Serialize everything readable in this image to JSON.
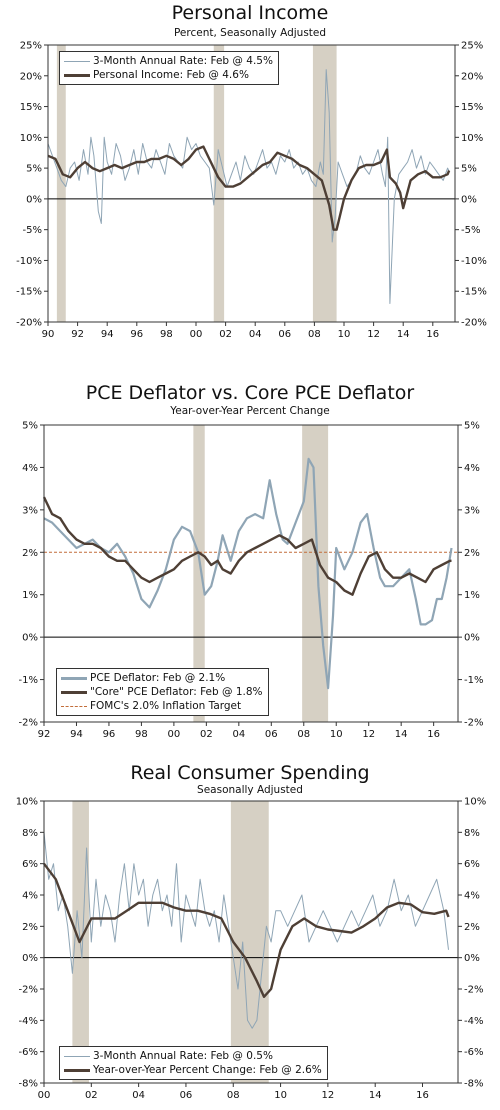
{
  "colors": {
    "series_light": "#8fa5b5",
    "series_dark": "#4e3f35",
    "recession": "#d6d0c4",
    "target": "#c26d3a",
    "zero": "#000000"
  },
  "chart_data": [
    {
      "type": "line",
      "title": "Personal Income",
      "subtitle": "Percent, Seasonally Adjusted",
      "xlim": [
        1990,
        2017.5
      ],
      "ylim": [
        -20,
        25
      ],
      "yticks": [
        25,
        20,
        15,
        10,
        5,
        0,
        -5,
        -10,
        -15,
        -20
      ],
      "ytick_labels": [
        "25%",
        "20%",
        "15%",
        "10%",
        "5%",
        "0%",
        "-5%",
        "-10%",
        "-15%",
        "-20%"
      ],
      "xticks": [
        1990,
        1992,
        1994,
        1996,
        1998,
        2000,
        2002,
        2004,
        2006,
        2008,
        2010,
        2012,
        2014,
        2016
      ],
      "xtick_labels": [
        "90",
        "92",
        "94",
        "96",
        "98",
        "00",
        "02",
        "04",
        "06",
        "08",
        "10",
        "12",
        "14",
        "16"
      ],
      "recessions": [
        [
          1990.6,
          1991.2
        ],
        [
          2001.2,
          2001.9
        ],
        [
          2007.9,
          2009.5
        ]
      ],
      "legend": [
        "3-Month Annual Rate: Feb @ 4.5%",
        "Personal Income: Feb @ 4.6%"
      ],
      "series": [
        {
          "name": "3-Month Annual Rate: Feb @ 4.5%",
          "style": "light",
          "x": [
            1990.0,
            1990.3,
            1990.6,
            1990.9,
            1991.2,
            1991.5,
            1991.8,
            1992.1,
            1992.4,
            1992.7,
            1992.9,
            1993.1,
            1993.4,
            1993.6,
            1993.8,
            1994.0,
            1994.3,
            1994.6,
            1994.9,
            1995.2,
            1995.5,
            1995.8,
            1996.1,
            1996.4,
            1996.7,
            1997.0,
            1997.3,
            1997.6,
            1997.9,
            1998.2,
            1998.5,
            1998.8,
            1999.1,
            1999.4,
            1999.7,
            2000.0,
            2000.3,
            2000.6,
            2000.9,
            2001.2,
            2001.5,
            2001.8,
            2002.1,
            2002.4,
            2002.7,
            2003.0,
            2003.3,
            2003.6,
            2003.9,
            2004.2,
            2004.5,
            2004.8,
            2005.1,
            2005.4,
            2005.7,
            2006.0,
            2006.3,
            2006.6,
            2006.9,
            2007.2,
            2007.5,
            2007.8,
            2008.1,
            2008.4,
            2008.6,
            2008.8,
            2009.0,
            2009.2,
            2009.4,
            2009.6,
            2009.9,
            2010.2,
            2010.5,
            2010.8,
            2011.1,
            2011.4,
            2011.7,
            2012.0,
            2012.3,
            2012.6,
            2012.8,
            2012.95,
            2013.1,
            2013.4,
            2013.7,
            2014.0,
            2014.3,
            2014.6,
            2014.9,
            2015.2,
            2015.5,
            2015.8,
            2016.1,
            2016.4,
            2016.7,
            2017.0,
            2017.1
          ],
          "y": [
            9,
            7,
            5,
            3,
            2,
            5,
            6,
            3,
            8,
            4,
            10,
            7,
            -2,
            -4,
            10,
            6,
            4,
            9,
            7,
            3,
            5,
            8,
            4,
            9,
            6,
            5,
            8,
            6,
            4,
            9,
            7,
            6,
            5,
            10,
            8,
            9,
            7,
            6,
            5,
            -1,
            8,
            5,
            2,
            4,
            6,
            3,
            7,
            5,
            4,
            6,
            8,
            5,
            6,
            4,
            7,
            6,
            8,
            5,
            6,
            4,
            5,
            3,
            2,
            6,
            4,
            21,
            14,
            -7,
            -3,
            6,
            4,
            2,
            3,
            4,
            7,
            5,
            4,
            6,
            8,
            4,
            2,
            10,
            -17,
            0,
            4,
            5,
            6,
            8,
            5,
            7,
            4,
            6,
            5,
            4,
            3,
            5,
            4.5
          ]
        },
        {
          "name": "Personal Income: Feb @ 4.6%",
          "style": "dark",
          "x": [
            1990.0,
            1990.5,
            1991.0,
            1991.5,
            1992.0,
            1992.5,
            1993.0,
            1993.5,
            1994.0,
            1994.5,
            1995.0,
            1995.5,
            1996.0,
            1996.5,
            1997.0,
            1997.5,
            1998.0,
            1998.5,
            1999.0,
            1999.5,
            2000.0,
            2000.5,
            2001.0,
            2001.5,
            2002.0,
            2002.5,
            2003.0,
            2003.5,
            2004.0,
            2004.5,
            2005.0,
            2005.5,
            2006.0,
            2006.5,
            2007.0,
            2007.5,
            2008.0,
            2008.5,
            2009.0,
            2009.3,
            2009.5,
            2010.0,
            2010.5,
            2011.0,
            2011.5,
            2012.0,
            2012.5,
            2012.9,
            2013.1,
            2013.5,
            2013.8,
            2014.0,
            2014.5,
            2015.0,
            2015.5,
            2016.0,
            2016.5,
            2017.0,
            2017.1
          ],
          "y": [
            7,
            6.5,
            4,
            3.5,
            5,
            6,
            5,
            4.5,
            5,
            5.5,
            5,
            5.5,
            6,
            6,
            6.5,
            6.5,
            7,
            6.5,
            5.5,
            6.5,
            8,
            8.5,
            6,
            3.5,
            2,
            2,
            2.5,
            3.5,
            4.5,
            5.5,
            6,
            7.5,
            7,
            6.5,
            5.5,
            5,
            4,
            3,
            -1,
            -5,
            -5,
            0,
            3,
            5,
            5.5,
            5.5,
            6,
            8,
            3.5,
            2.5,
            1,
            -1.5,
            3,
            4,
            4.5,
            3.5,
            3.5,
            4,
            4.6
          ]
        }
      ]
    },
    {
      "type": "line",
      "title": "PCE Deflator vs. Core PCE Deflator",
      "subtitle": "Year-over-Year Percent Change",
      "xlim": [
        1992,
        2017.5
      ],
      "ylim": [
        -2,
        5
      ],
      "yticks": [
        5,
        4,
        3,
        2,
        1,
        0,
        -1,
        -2
      ],
      "ytick_labels": [
        "5%",
        "4%",
        "3%",
        "2%",
        "1%",
        "0%",
        "-1%",
        "-2%"
      ],
      "xticks": [
        1992,
        1994,
        1996,
        1998,
        2000,
        2002,
        2004,
        2006,
        2008,
        2010,
        2012,
        2014,
        2016
      ],
      "xtick_labels": [
        "92",
        "94",
        "96",
        "98",
        "00",
        "02",
        "04",
        "06",
        "08",
        "10",
        "12",
        "14",
        "16"
      ],
      "recessions": [
        [
          2001.2,
          2001.9
        ],
        [
          2007.9,
          2009.5
        ]
      ],
      "target": 2.0,
      "legend": [
        "PCE Deflator: Feb @ 2.1%",
        "\"Core\" PCE Deflator: Feb @ 1.8%",
        "FOMC's 2.0% Inflation Target"
      ],
      "series": [
        {
          "name": "PCE Deflator: Feb @ 2.1%",
          "style": "light",
          "x": [
            1992.0,
            1992.5,
            1993.0,
            1993.5,
            1994.0,
            1994.5,
            1995.0,
            1995.5,
            1996.0,
            1996.5,
            1997.0,
            1997.5,
            1998.0,
            1998.5,
            1999.0,
            1999.5,
            2000.0,
            2000.5,
            2001.0,
            2001.5,
            2001.9,
            2002.3,
            2002.7,
            2003.0,
            2003.5,
            2004.0,
            2004.5,
            2005.0,
            2005.5,
            2005.9,
            2006.3,
            2006.7,
            2007.0,
            2007.5,
            2008.0,
            2008.3,
            2008.6,
            2008.9,
            2009.2,
            2009.5,
            2009.8,
            2010.0,
            2010.5,
            2011.0,
            2011.5,
            2011.9,
            2012.3,
            2012.7,
            2013.0,
            2013.5,
            2014.0,
            2014.5,
            2014.9,
            2015.2,
            2015.5,
            2015.9,
            2016.2,
            2016.5,
            2016.8,
            2017.1
          ],
          "y": [
            2.8,
            2.7,
            2.5,
            2.3,
            2.1,
            2.2,
            2.3,
            2.1,
            2.0,
            2.2,
            1.9,
            1.5,
            0.9,
            0.7,
            1.1,
            1.6,
            2.3,
            2.6,
            2.5,
            2.0,
            1.0,
            1.2,
            1.8,
            2.4,
            1.8,
            2.5,
            2.8,
            2.9,
            2.8,
            3.7,
            2.9,
            2.3,
            2.2,
            2.7,
            3.2,
            4.2,
            4.0,
            1.2,
            -0.2,
            -1.2,
            0.5,
            2.1,
            1.6,
            2.0,
            2.7,
            2.9,
            2.1,
            1.4,
            1.2,
            1.2,
            1.4,
            1.6,
            0.9,
            0.3,
            0.3,
            0.4,
            0.9,
            0.9,
            1.4,
            2.1
          ]
        },
        {
          "name": "\"Core\" PCE Deflator: Feb @ 1.8%",
          "style": "dark",
          "x": [
            1992.0,
            1992.5,
            1993.0,
            1993.5,
            1994.0,
            1994.5,
            1995.0,
            1995.5,
            1996.0,
            1996.5,
            1997.0,
            1997.5,
            1998.0,
            1998.5,
            1999.0,
            1999.5,
            2000.0,
            2000.5,
            2001.0,
            2001.5,
            2001.9,
            2002.3,
            2002.7,
            2003.0,
            2003.5,
            2004.0,
            2004.5,
            2005.0,
            2005.5,
            2006.0,
            2006.5,
            2007.0,
            2007.5,
            2008.0,
            2008.5,
            2009.0,
            2009.5,
            2010.0,
            2010.5,
            2011.0,
            2011.5,
            2012.0,
            2012.5,
            2013.0,
            2013.5,
            2014.0,
            2014.5,
            2015.0,
            2015.5,
            2016.0,
            2016.5,
            2017.0,
            2017.1
          ],
          "y": [
            3.3,
            2.9,
            2.8,
            2.5,
            2.3,
            2.2,
            2.2,
            2.1,
            1.9,
            1.8,
            1.8,
            1.6,
            1.4,
            1.3,
            1.4,
            1.5,
            1.6,
            1.8,
            1.9,
            2.0,
            1.9,
            1.7,
            1.8,
            1.6,
            1.5,
            1.8,
            2.0,
            2.1,
            2.2,
            2.3,
            2.4,
            2.3,
            2.1,
            2.2,
            2.3,
            1.7,
            1.4,
            1.3,
            1.1,
            1.0,
            1.5,
            1.9,
            2.0,
            1.6,
            1.4,
            1.4,
            1.5,
            1.4,
            1.3,
            1.6,
            1.7,
            1.8,
            1.8
          ]
        }
      ]
    },
    {
      "type": "line",
      "title": "Real Consumer Spending",
      "subtitle": "Seasonally Adjusted",
      "xlim": [
        2000,
        2017.5
      ],
      "ylim": [
        -8,
        10
      ],
      "yticks": [
        10,
        8,
        6,
        4,
        2,
        0,
        -2,
        -4,
        -6,
        -8
      ],
      "ytick_labels": [
        "10%",
        "8%",
        "6%",
        "4%",
        "2%",
        "0%",
        "-2%",
        "-4%",
        "-6%",
        "-8%"
      ],
      "xticks": [
        2000,
        2002,
        2004,
        2006,
        2008,
        2010,
        2012,
        2014,
        2016
      ],
      "xtick_labels": [
        "00",
        "02",
        "04",
        "06",
        "08",
        "10",
        "12",
        "14",
        "16"
      ],
      "recessions": [
        [
          2001.2,
          2001.9
        ],
        [
          2007.9,
          2009.5
        ]
      ],
      "legend": [
        "3-Month Annual Rate: Feb @ 0.5%",
        "Year-over-Year Percent Change: Feb @ 2.6%"
      ],
      "series": [
        {
          "name": "3-Month Annual Rate: Feb @ 0.5%",
          "style": "light",
          "x": [
            2000.0,
            2000.2,
            2000.4,
            2000.6,
            2000.8,
            2001.0,
            2001.2,
            2001.4,
            2001.6,
            2001.8,
            2002.0,
            2002.2,
            2002.4,
            2002.6,
            2002.8,
            2003.0,
            2003.2,
            2003.4,
            2003.6,
            2003.8,
            2004.0,
            2004.2,
            2004.4,
            2004.6,
            2004.8,
            2005.0,
            2005.2,
            2005.4,
            2005.6,
            2005.8,
            2006.0,
            2006.2,
            2006.4,
            2006.6,
            2006.8,
            2007.0,
            2007.2,
            2007.4,
            2007.6,
            2007.8,
            2008.0,
            2008.2,
            2008.4,
            2008.6,
            2008.8,
            2009.0,
            2009.2,
            2009.4,
            2009.6,
            2009.8,
            2010.0,
            2010.3,
            2010.6,
            2010.9,
            2011.2,
            2011.5,
            2011.8,
            2012.1,
            2012.4,
            2012.7,
            2013.0,
            2013.3,
            2013.6,
            2013.9,
            2014.2,
            2014.5,
            2014.8,
            2015.1,
            2015.4,
            2015.7,
            2016.0,
            2016.3,
            2016.6,
            2016.9,
            2017.1
          ],
          "y": [
            8,
            5,
            6,
            3,
            4,
            2,
            -1,
            3,
            0,
            7,
            1,
            5,
            2,
            4,
            3,
            1,
            4,
            6,
            3,
            6,
            4,
            5,
            2,
            4,
            5,
            3,
            4,
            2,
            6,
            1,
            4,
            3,
            2,
            5,
            3,
            2,
            3,
            1,
            4,
            2,
            0,
            -2,
            1,
            -4,
            -4.5,
            -4,
            -1,
            2,
            1,
            3,
            3,
            2,
            3,
            4,
            1,
            2,
            3,
            2,
            1,
            2,
            3,
            2,
            3,
            4,
            2,
            3,
            5,
            3,
            4,
            2,
            3,
            4,
            5,
            3,
            0.5
          ]
        },
        {
          "name": "Year-over-Year Percent Change: Feb @ 2.6%",
          "style": "dark",
          "x": [
            2000.0,
            2000.5,
            2001.0,
            2001.5,
            2002.0,
            2002.5,
            2003.0,
            2003.5,
            2004.0,
            2004.5,
            2005.0,
            2005.5,
            2006.0,
            2006.5,
            2007.0,
            2007.5,
            2008.0,
            2008.5,
            2009.0,
            2009.3,
            2009.6,
            2010.0,
            2010.5,
            2011.0,
            2011.5,
            2012.0,
            2012.5,
            2013.0,
            2013.5,
            2014.0,
            2014.5,
            2015.0,
            2015.5,
            2016.0,
            2016.5,
            2017.0,
            2017.1
          ],
          "y": [
            6,
            5,
            3,
            1,
            2.5,
            2.5,
            2.5,
            3,
            3.5,
            3.5,
            3.5,
            3.2,
            3,
            3,
            2.8,
            2.5,
            1,
            0,
            -1.5,
            -2.5,
            -2,
            0.5,
            2,
            2.5,
            2,
            1.8,
            1.7,
            1.6,
            2,
            2.5,
            3.2,
            3.5,
            3.4,
            2.9,
            2.8,
            3,
            2.6
          ]
        }
      ]
    }
  ]
}
